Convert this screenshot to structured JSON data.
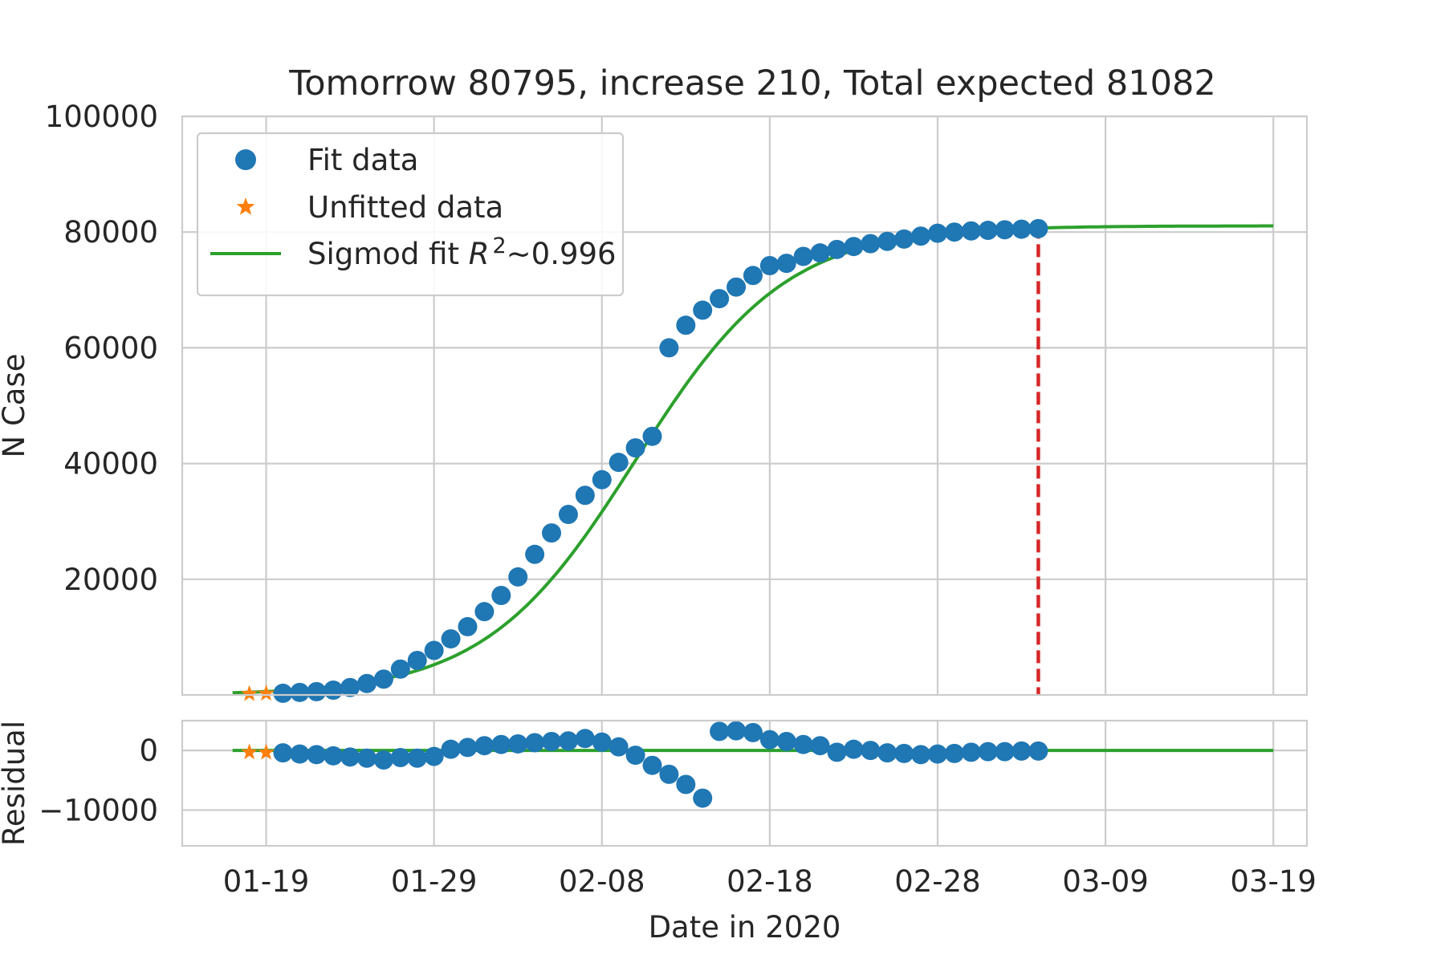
{
  "chart_data": {
    "type": "scatter",
    "title": "Tomorrow 80795, increase 210, Total expected 81082",
    "xlabel": "Date in 2020",
    "x_axis": {
      "kind": "date",
      "range": [
        "2020-01-14",
        "2020-03-21"
      ],
      "tick_dates": [
        "2020-01-19",
        "2020-01-29",
        "2020-02-08",
        "2020-02-18",
        "2020-02-28",
        "2020-03-09",
        "2020-03-19"
      ],
      "tick_labels": [
        "01-19",
        "01-29",
        "02-08",
        "02-18",
        "02-28",
        "03-09",
        "03-19"
      ]
    },
    "grid": true,
    "legend_position": "upper left",
    "colors": {
      "fit_data": "#1f77b4",
      "unfitted_data": "#ff7f0e",
      "fit_curve": "#2ca02c",
      "marker_line": "#d62728"
    },
    "main_panel": {
      "ylabel": "N Case",
      "ylim": [
        0,
        100000
      ],
      "y_ticks": [
        20000,
        40000,
        60000,
        80000,
        100000
      ],
      "y_tick_labels": [
        "20000",
        "40000",
        "60000",
        "80000",
        "100000"
      ]
    },
    "residual_panel": {
      "ylabel": "Residual",
      "ylim": [
        -16000,
        5000
      ],
      "y_ticks": [
        0,
        -10000
      ],
      "y_tick_labels": [
        "0",
        "−10000"
      ]
    },
    "legend": [
      {
        "label": "Fit data",
        "marker": "circle"
      },
      {
        "label": "Unfitted data",
        "marker": "star"
      },
      {
        "label_prefix": "Sigmod fit ",
        "label_var": "R",
        "label_exp": "2",
        "label_suffix": "~0.996",
        "marker": "line"
      }
    ],
    "vertical_marker": {
      "x": "2020-03-05",
      "from": 0,
      "to": 81082
    },
    "series": [
      {
        "name": "Unfitted data",
        "x": [
          "2020-01-18",
          "2020-01-19"
        ],
        "y": [
          200,
          250
        ],
        "residual": [
          -300,
          -350
        ]
      },
      {
        "name": "Fit data",
        "x": [
          "2020-01-20",
          "2020-01-21",
          "2020-01-22",
          "2020-01-23",
          "2020-01-24",
          "2020-01-25",
          "2020-01-26",
          "2020-01-27",
          "2020-01-28",
          "2020-01-29",
          "2020-01-30",
          "2020-01-31",
          "2020-02-01",
          "2020-02-02",
          "2020-02-03",
          "2020-02-04",
          "2020-02-05",
          "2020-02-06",
          "2020-02-07",
          "2020-02-08",
          "2020-02-09",
          "2020-02-10",
          "2020-02-11",
          "2020-02-12",
          "2020-02-13",
          "2020-02-14",
          "2020-02-15",
          "2020-02-16",
          "2020-02-17",
          "2020-02-18",
          "2020-02-19",
          "2020-02-20",
          "2020-02-21",
          "2020-02-22",
          "2020-02-23",
          "2020-02-24",
          "2020-02-25",
          "2020-02-26",
          "2020-02-27",
          "2020-02-28",
          "2020-02-29",
          "2020-03-01",
          "2020-03-02",
          "2020-03-03",
          "2020-03-04",
          "2020-03-05"
        ],
        "y": [
          290,
          440,
          570,
          830,
          1290,
          1980,
          2740,
          4470,
          5970,
          7700,
          9700,
          11800,
          14400,
          17200,
          20400,
          24300,
          28000,
          31200,
          34500,
          37200,
          40200,
          42700,
          44700,
          60000,
          63900,
          66500,
          68500,
          70500,
          72500,
          74200,
          74600,
          75800,
          76400,
          77000,
          77500,
          78000,
          78400,
          78800,
          79300,
          79800,
          80000,
          80200,
          80300,
          80400,
          80500,
          80600
        ],
        "residual": [
          -400,
          -600,
          -700,
          -900,
          -1100,
          -1300,
          -1600,
          -1200,
          -1300,
          -1000,
          200,
          500,
          800,
          1000,
          1100,
          1300,
          1500,
          1600,
          2000,
          1400,
          600,
          -800,
          -2500,
          -4000,
          -5700,
          -8000,
          3200,
          3300,
          3000,
          1800,
          1500,
          1000,
          800,
          -300,
          200,
          0,
          -400,
          -500,
          -700,
          -600,
          -500,
          -300,
          -200,
          -200,
          -100,
          -100
        ]
      },
      {
        "name": "Sigmod fit",
        "fit": {
          "L": 81082,
          "k": 0.223,
          "x0": "2020-02-10"
        },
        "x_range": [
          "2020-01-17",
          "2020-03-19"
        ]
      }
    ]
  }
}
